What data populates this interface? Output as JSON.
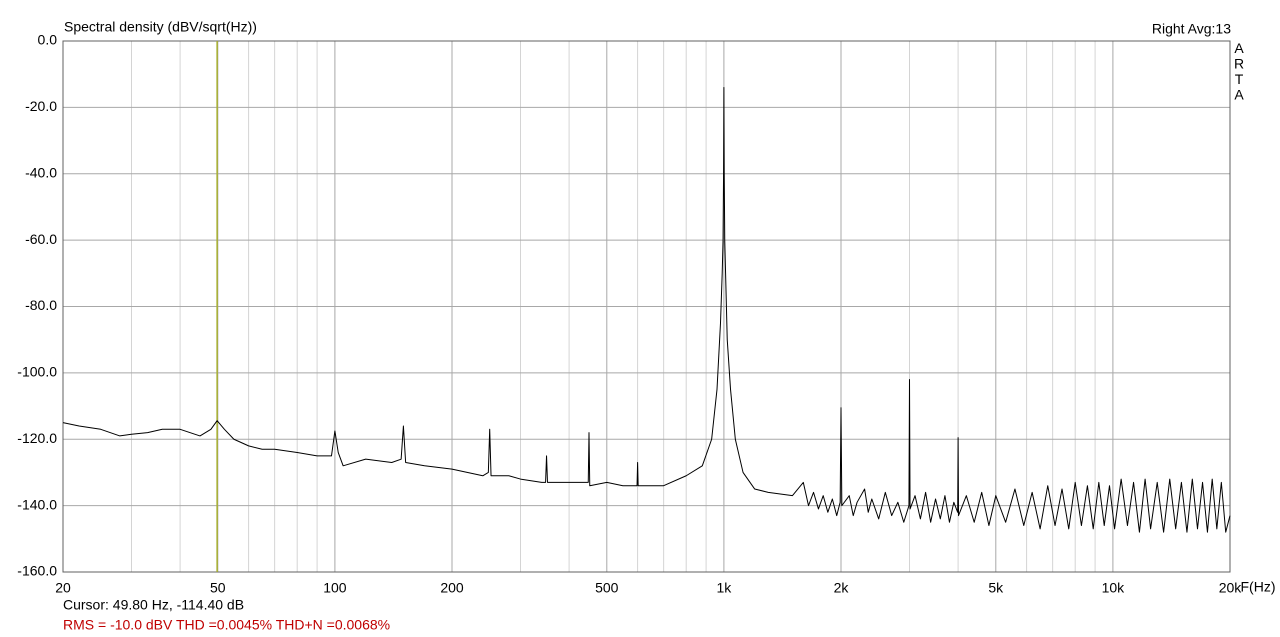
{
  "chart_data": {
    "type": "line",
    "title": "Spectral density (dBV/sqrt(Hz))",
    "channel_info": "Right  Avg:13",
    "brand": "ARTA",
    "x_label": "F(Hz)",
    "cursor_readout": "Cursor: 49.80 Hz, -114.40 dB",
    "measurements": "RMS =  -10.0 dBV  THD =0.0045%  THD+N =0.0068%",
    "cursor": {
      "x": 49.8,
      "color": "#a8b030"
    },
    "x_log": true,
    "grid": true,
    "xlim": [
      20,
      20000
    ],
    "ylim": [
      -160,
      0
    ],
    "xticks": [
      20,
      50,
      100,
      200,
      500,
      {
        "value": 1000,
        "label": "1k"
      },
      {
        "value": 2000,
        "label": "2k"
      },
      {
        "value": 5000,
        "label": "5k"
      },
      {
        "value": 10000,
        "label": "10k"
      },
      {
        "value": 20000,
        "label": "20k"
      }
    ],
    "xminorticks": [
      30,
      40,
      60,
      70,
      80,
      90,
      300,
      400,
      600,
      700,
      800,
      900,
      3000,
      4000,
      6000,
      7000,
      8000,
      9000
    ],
    "yticks": [
      {
        "value": 0,
        "label": "0.0"
      },
      {
        "value": -20,
        "label": "-20.0"
      },
      {
        "value": -40,
        "label": "-40.0"
      },
      {
        "value": -60,
        "label": "-60.0"
      },
      {
        "value": -80,
        "label": "-80.0"
      },
      {
        "value": -100,
        "label": "-100.0"
      },
      {
        "value": -120,
        "label": "-120.0"
      },
      {
        "value": -140,
        "label": "-140.0"
      },
      {
        "value": -160,
        "label": "-160.0"
      }
    ],
    "x": [
      20,
      22,
      25,
      28,
      30,
      33,
      36,
      40,
      45,
      48,
      49.8,
      52,
      55,
      60,
      65,
      70,
      80,
      90,
      98,
      100,
      102,
      105,
      120,
      140,
      148,
      150,
      152,
      170,
      200,
      240,
      248,
      250,
      252,
      280,
      300,
      340,
      348,
      350,
      352,
      400,
      440,
      448,
      450,
      452,
      500,
      550,
      598,
      600,
      602,
      700,
      800,
      880,
      930,
      960,
      980,
      990,
      995,
      998,
      1000,
      1002,
      1005,
      1010,
      1020,
      1040,
      1070,
      1120,
      1200,
      1300,
      1500,
      1600,
      1650,
      1700,
      1750,
      1800,
      1850,
      1900,
      1950,
      1990,
      2000,
      2010,
      2100,
      2150,
      2200,
      2300,
      2350,
      2400,
      2500,
      2600,
      2700,
      2800,
      2900,
      2990,
      3000,
      3010,
      3100,
      3200,
      3300,
      3400,
      3500,
      3600,
      3700,
      3800,
      3900,
      3990,
      4000,
      4010,
      4200,
      4400,
      4600,
      4800,
      5000,
      5300,
      5600,
      5900,
      6200,
      6500,
      6800,
      7100,
      7400,
      7700,
      8000,
      8300,
      8600,
      8900,
      9200,
      9500,
      9800,
      10100,
      10500,
      10900,
      11300,
      11700,
      12100,
      12500,
      13000,
      13500,
      14000,
      14500,
      15000,
      15500,
      16000,
      16500,
      17000,
      17500,
      18000,
      18500,
      19000,
      19500,
      20000
    ],
    "series": [
      {
        "color": "#000000",
        "values": [
          -115,
          -116,
          -117,
          -119,
          -118.5,
          -118,
          -117,
          -117,
          -119,
          -117,
          -114.4,
          -117,
          -120,
          -122,
          -123,
          -123,
          -124,
          -125,
          -125,
          -117.5,
          -124,
          -128,
          -126,
          -127,
          -126,
          -116,
          -127,
          -128,
          -129,
          -131,
          -130,
          -117,
          -131,
          -131,
          -132,
          -133,
          -133,
          -125,
          -133,
          -133,
          -133,
          -133,
          -118,
          -134,
          -133,
          -134,
          -134,
          -127,
          -134,
          -134,
          -131,
          -128,
          -120,
          -105,
          -85,
          -70,
          -60,
          -40,
          -14,
          -40,
          -60,
          -70,
          -90,
          -105,
          -120,
          -130,
          -135,
          -136,
          -137,
          -133,
          -140,
          -136,
          -141,
          -137,
          -142,
          -138,
          -143,
          -139,
          -110.5,
          -140,
          -137,
          -143,
          -139,
          -135,
          -142,
          -138,
          -144,
          -136,
          -143,
          -139,
          -145,
          -140,
          -102,
          -141,
          -137,
          -144,
          -136,
          -145,
          -138,
          -144,
          -137,
          -145,
          -139,
          -142,
          -119.5,
          -143,
          -137,
          -145,
          -136,
          -146,
          -137,
          -145,
          -135,
          -146,
          -136,
          -147,
          -134,
          -146,
          -135,
          -147,
          -133,
          -146,
          -134,
          -147,
          -133,
          -146,
          -134,
          -147,
          -132,
          -146,
          -133,
          -148,
          -132,
          -147,
          -133,
          -148,
          -132,
          -147,
          -133,
          -148,
          -132,
          -147,
          -133,
          -148,
          -132,
          -147,
          -133,
          -148,
          -143
        ]
      }
    ]
  }
}
